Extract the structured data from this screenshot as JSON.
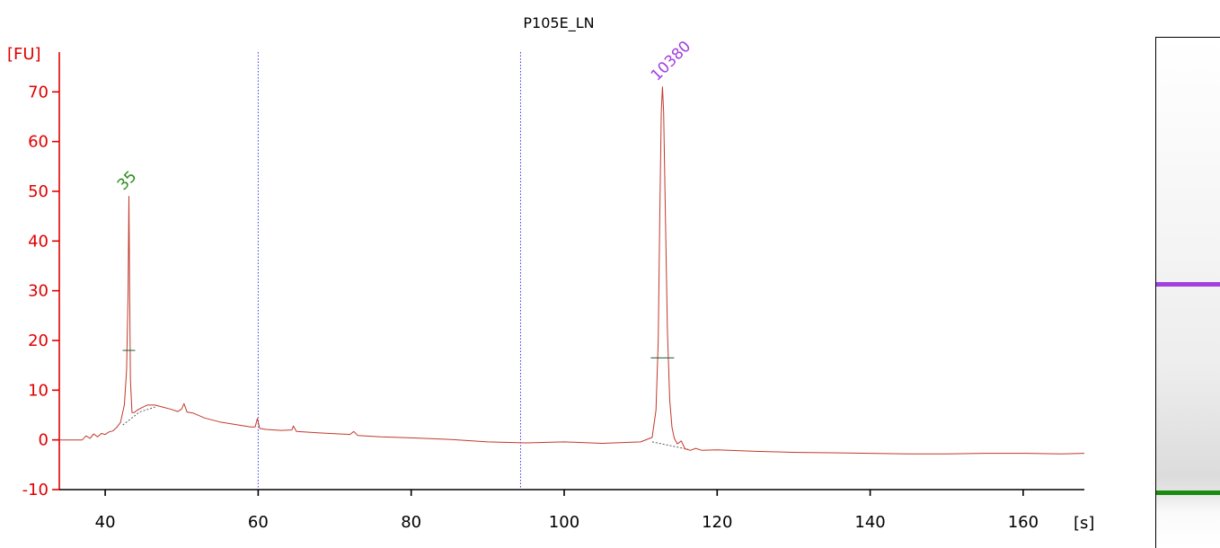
{
  "chart_data": {
    "type": "line",
    "title": "P105E_LN",
    "ylabel": "[FU]",
    "xlabel": "[s]",
    "xlim": [
      34,
      168
    ],
    "ylim": [
      -10,
      78
    ],
    "xticks": [
      40,
      60,
      80,
      100,
      120,
      140,
      160
    ],
    "yticks": [
      -10,
      0,
      10,
      20,
      30,
      40,
      50,
      60,
      70
    ],
    "vertical_markers": [
      60,
      94.3
    ],
    "series": [
      {
        "color": "#c0392b",
        "x": [
          34,
          36,
          37,
          37.5,
          38,
          38.5,
          39,
          39.5,
          40,
          40.5,
          41,
          41.5,
          42,
          42.5,
          42.8,
          43.0,
          43.1,
          43.2,
          43.3,
          43.5,
          43.8,
          44.2,
          44.8,
          45.5,
          46.5,
          47.5,
          48.5,
          49.5,
          50.0,
          50.3,
          50.7,
          51.5,
          53,
          55,
          57,
          59,
          59.6,
          59.9,
          60.2,
          61,
          63,
          64.4,
          64.6,
          65,
          68,
          72,
          72.5,
          73,
          76,
          80,
          85,
          90,
          95,
          100,
          105,
          110,
          111.5,
          112.0,
          112.3,
          112.5,
          112.7,
          112.85,
          113.0,
          113.2,
          113.5,
          113.8,
          114.1,
          114.4,
          114.8,
          115.3,
          115.8,
          116.5,
          117.2,
          118,
          120,
          125,
          130,
          135,
          140,
          145,
          150,
          155,
          160,
          165,
          168
        ],
        "y": [
          0,
          0,
          0,
          0.8,
          0.3,
          1.2,
          0.6,
          1.3,
          1.1,
          1.6,
          1.8,
          2.5,
          3.5,
          7,
          14,
          30,
          49,
          30,
          12,
          5.5,
          5.5,
          6.0,
          6.5,
          7.0,
          7.0,
          6.6,
          6.2,
          5.7,
          6.2,
          7.3,
          5.6,
          5.4,
          4.4,
          3.6,
          3.1,
          2.6,
          2.6,
          4.3,
          2.3,
          2.1,
          1.9,
          2.0,
          2.8,
          1.7,
          1.4,
          1.1,
          1.7,
          0.9,
          0.6,
          0.4,
          0.1,
          -0.4,
          -0.6,
          -0.4,
          -0.7,
          -0.4,
          0.5,
          6,
          20,
          45,
          66,
          71,
          66,
          48,
          22,
          8,
          2.5,
          0.3,
          -0.8,
          -0.2,
          -1.8,
          -2.1,
          -1.7,
          -2.1,
          -2.0,
          -2.3,
          -2.5,
          -2.6,
          -2.7,
          -2.8,
          -2.8,
          -2.7,
          -2.7,
          -2.8,
          -2.7
        ]
      }
    ],
    "peaks": [
      {
        "label": "35",
        "x": 43.1,
        "y": 49,
        "halfheight": 18,
        "color": "#2a8a1a"
      },
      {
        "label": "10380",
        "x": 112.85,
        "y": 71,
        "halfheight": 16.5,
        "color": "#a040e0"
      }
    ],
    "gel_bands": [
      {
        "color": "#a040e0"
      },
      {
        "color": "#1a8a10"
      }
    ]
  }
}
